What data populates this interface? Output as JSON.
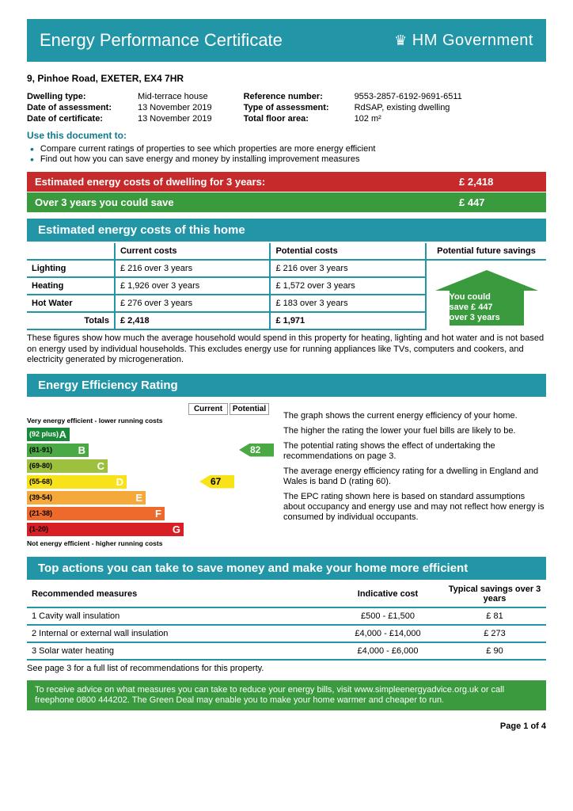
{
  "header": {
    "title": "Energy Performance Certificate",
    "gov": "HM Government"
  },
  "address": "9, Pinhoe Road, EXETER, EX4 7HR",
  "info_left": {
    "dwelling_type_label": "Dwelling type:",
    "dwelling_type": "Mid-terrace house",
    "date_assessment_label": "Date of assessment:",
    "date_assessment": "13  November  2019",
    "date_certificate_label": "Date of certificate:",
    "date_certificate": "13  November  2019"
  },
  "info_right": {
    "reference_label": "Reference number:",
    "reference": "9553-2857-6192-9691-6511",
    "type_assessment_label": "Type of assessment:",
    "type_assessment": "RdSAP, existing dwelling",
    "floor_area_label": "Total floor area:",
    "floor_area": "102 m²"
  },
  "use_doc": {
    "title": "Use this document to:",
    "b1": "Compare current ratings of properties to see which properties are more energy efficient",
    "b2": "Find out how you can save energy and money by installing improvement measures"
  },
  "cost_bars": {
    "red_label": "Estimated energy costs of dwelling for 3 years:",
    "red_value": "£ 2,418",
    "green_label": "Over 3 years you could save",
    "green_value": "£ 447"
  },
  "costs_section_title": "Estimated energy costs of this home",
  "costs_table": {
    "headers": {
      "current": "Current costs",
      "potential": "Potential costs",
      "future": "Potential future savings"
    },
    "rows": [
      {
        "name": "Lighting",
        "current": "£ 216 over 3 years",
        "potential": "£ 216 over 3 years"
      },
      {
        "name": "Heating",
        "current": "£ 1,926 over 3 years",
        "potential": "£ 1,572 over 3 years"
      },
      {
        "name": "Hot Water",
        "current": "£ 276 over 3 years",
        "potential": "£ 183 over 3 years"
      }
    ],
    "totals_label": "Totals",
    "total_current": "£ 2,418",
    "total_potential": "£ 1,971",
    "savings_arrow": {
      "l1": "You could",
      "l2": "save £ 447",
      "l3": "over 3 years"
    }
  },
  "costs_note": "These figures show how much the average household would spend in this property for heating, lighting and hot water and is not based on energy used by individual households. This excludes energy use for running appliances like TVs, computers and cookers, and electricity generated by microgeneration.",
  "rating_section_title": "Energy Efficiency Rating",
  "rating_chart": {
    "top_label": "Very energy efficient - lower running costs",
    "bottom_label": "Not energy efficient - higher running costs",
    "col_current": "Current",
    "col_potential": "Potential",
    "bands": [
      {
        "letter": "A",
        "range": "(92 plus)",
        "class": "band-A"
      },
      {
        "letter": "B",
        "range": "(81-91)",
        "class": "band-B"
      },
      {
        "letter": "C",
        "range": "(69-80)",
        "class": "band-C"
      },
      {
        "letter": "D",
        "range": "(55-68)",
        "class": "band-D"
      },
      {
        "letter": "E",
        "range": "(39-54)",
        "class": "band-E"
      },
      {
        "letter": "F",
        "range": "(21-38)",
        "class": "band-F"
      },
      {
        "letter": "G",
        "range": "(1-20)",
        "class": "band-G"
      }
    ],
    "current_value": "67",
    "current_band_idx": 3,
    "potential_value": "82",
    "potential_band_idx": 1
  },
  "rating_text": {
    "p1": "The graph shows the current energy efficiency of your home.",
    "p2": "The higher the rating the lower your fuel bills are likely to be.",
    "p3": "The potential rating shows the effect of undertaking the recommendations on page 3.",
    "p4": "The average energy efficiency rating for a dwelling in England and Wales is band D (rating 60).",
    "p5": "The EPC rating shown here is based on standard assumptions about occupancy and energy use and may not reflect how energy is consumed by individual occupants."
  },
  "actions_title": "Top actions you can take to save money and make your home more efficient",
  "actions_table": {
    "h1": "Recommended measures",
    "h2": "Indicative cost",
    "h3": "Typical savings over 3 years",
    "rows": [
      {
        "n": "1  Cavity wall insulation",
        "cost": "£500 - £1,500",
        "savings": "£ 81"
      },
      {
        "n": "2  Internal or external wall insulation",
        "cost": "£4,000 - £14,000",
        "savings": "£ 273"
      },
      {
        "n": "3  Solar water heating",
        "cost": "£4,000 - £6,000",
        "savings": "£ 90"
      }
    ]
  },
  "actions_note": "See page 3 for a full list of recommendations for this property.",
  "green_footer": "To receive advice on what measures you can take to reduce your energy bills, visit www.simpleenergyadvice.org.uk or call freephone 0800 444202. The Green Deal may enable you to make your home warmer and cheaper to run.",
  "page": "Page 1 of 4"
}
